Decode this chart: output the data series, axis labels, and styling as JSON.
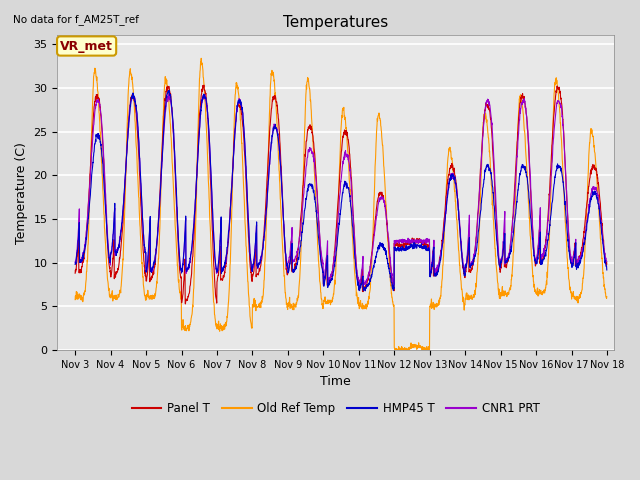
{
  "title": "Temperatures",
  "top_left_text": "No data for f_AM25T_ref",
  "annotation_box": "VR_met",
  "xlabel": "Time",
  "ylabel": "Temperature (C)",
  "ylim": [
    0,
    36
  ],
  "yticks": [
    0,
    5,
    10,
    15,
    20,
    25,
    30,
    35
  ],
  "xtick_positions": [
    3,
    4,
    5,
    6,
    7,
    8,
    9,
    10,
    11,
    12,
    13,
    14,
    15,
    16,
    17,
    18
  ],
  "xtick_labels": [
    "Nov 3",
    "Nov 4",
    "Nov 5",
    "Nov 6",
    "Nov 7",
    "Nov 8",
    "Nov 9",
    "Nov 10",
    "Nov 11",
    "Nov 12",
    "Nov 13",
    "Nov 14",
    "Nov 15",
    "Nov 16",
    "Nov 17",
    "Nov 18"
  ],
  "xlim": [
    2.5,
    18.2
  ],
  "colors": {
    "Panel T": "#cc0000",
    "Old Ref Temp": "#ff9900",
    "HMP45 T": "#0000cc",
    "CNR1 PRT": "#9900cc"
  },
  "fig_facecolor": "#d8d8d8",
  "ax_facecolor": "#e8e8e8",
  "grid_color": "#ffffff",
  "legend_entries": [
    "Panel T",
    "Old Ref Temp",
    "HMP45 T",
    "CNR1 PRT"
  ]
}
